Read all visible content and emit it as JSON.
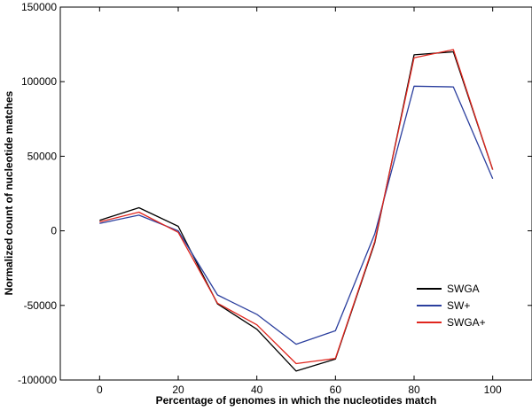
{
  "chart_data": {
    "type": "line",
    "title": "",
    "xlabel": "Percentage of genomes in which the nucleotides match",
    "ylabel": "Normalized count of nucleotide matches",
    "xlim": [
      -10,
      110
    ],
    "ylim": [
      -100000,
      150000
    ],
    "xticks": [
      0,
      20,
      40,
      60,
      80,
      100
    ],
    "xtick_labels": [
      "0",
      "20",
      "40",
      "60",
      "80",
      "100"
    ],
    "yticks": [
      -100000,
      -50000,
      0,
      50000,
      100000,
      150000
    ],
    "ytick_labels": [
      "-100000",
      "-50000",
      "0",
      "50000",
      "100000",
      "150000"
    ],
    "grid": false,
    "legend_position": "bottom-right",
    "x": [
      0,
      10,
      20,
      30,
      40,
      50,
      60,
      70,
      80,
      90,
      100
    ],
    "series": [
      {
        "name": "SWGA",
        "color": "#000000",
        "values": [
          7000,
          15500,
          3000,
          -49000,
          -66000,
          -94000,
          -86000,
          -8000,
          118000,
          120000,
          41000
        ]
      },
      {
        "name": "SW+",
        "color": "#2b3f9e",
        "values": [
          5000,
          10500,
          0,
          -43000,
          -56000,
          -76000,
          -67000,
          -2000,
          97000,
          96500,
          35000
        ]
      },
      {
        "name": "SWGA+",
        "color": "#e0261e",
        "values": [
          6000,
          12500,
          -1000,
          -48500,
          -63000,
          -89000,
          -85500,
          -7000,
          116000,
          121500,
          41000
        ]
      }
    ]
  }
}
